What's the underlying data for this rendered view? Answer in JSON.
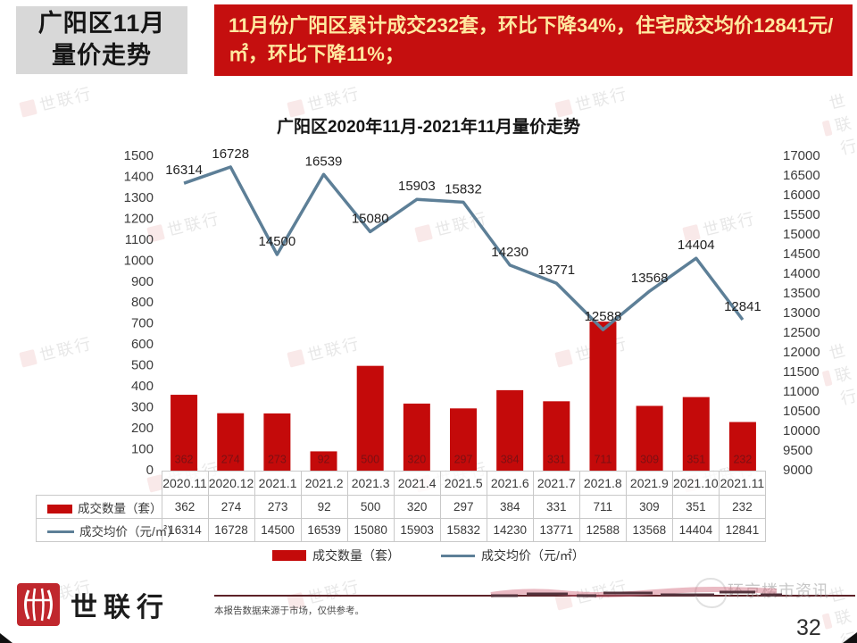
{
  "header": {
    "title_line1": "广阳区11月",
    "title_line2": "量价走势",
    "banner_text": "11月份广阳区累计成交232套，环比下降34%，住宅成交均价12841元/㎡，环比下降11%；"
  },
  "chart_data": {
    "type": "bar+line combo",
    "title": "广阳区2020年11月-2021年11月量价走势",
    "categories": [
      "2020.11",
      "2020.12",
      "2021.1",
      "2021.2",
      "2021.3",
      "2021.4",
      "2021.5",
      "2021.6",
      "2021.7",
      "2021.8",
      "2021.9",
      "2021.10",
      "2021.11"
    ],
    "series": [
      {
        "name": "成交数量（套）",
        "type": "bar",
        "axis": "left",
        "color": "#c40a0a",
        "values": [
          362,
          274,
          273,
          92,
          500,
          320,
          297,
          384,
          331,
          711,
          309,
          351,
          232
        ]
      },
      {
        "name": "成交均价（元/㎡）",
        "type": "line",
        "axis": "right",
        "color": "#5d7f97",
        "values": [
          16314,
          16728,
          14500,
          16539,
          15080,
          15903,
          15832,
          14230,
          13771,
          12588,
          13568,
          14404,
          12841
        ]
      }
    ],
    "left_axis": {
      "min": 0,
      "max": 1500,
      "step": 100
    },
    "right_axis": {
      "min": 9000,
      "max": 17000,
      "step": 500
    },
    "grid": false,
    "legend_position": "bottom",
    "data_table_shown": true
  },
  "watermark": {
    "text": "世联行"
  },
  "footer": {
    "brand": "世联行",
    "disclaimer": "本报告数据来源于市场，仅供参考。",
    "stamp_text": "环京楼市资讯",
    "page_number": "32"
  }
}
